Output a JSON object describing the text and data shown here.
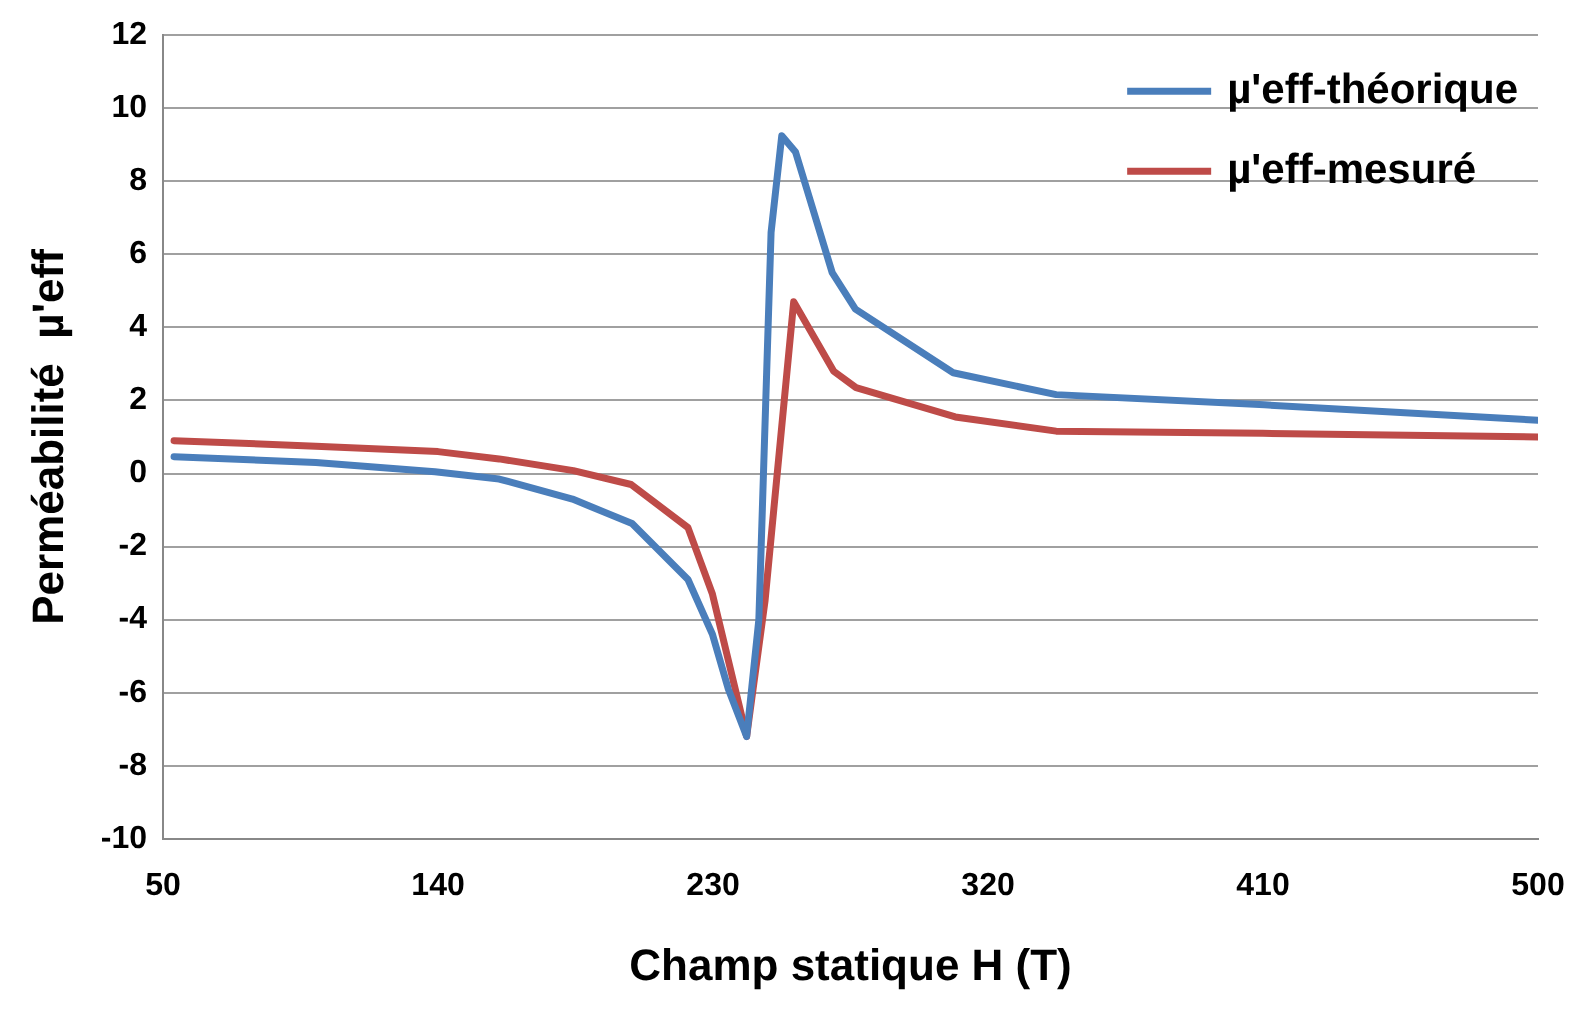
{
  "chart_data": {
    "type": "line",
    "xlabel": "Champ statique H (T)",
    "ylabel": "Perméabilité  µ'eff",
    "xlim": [
      50,
      500
    ],
    "xticks": [
      50,
      140,
      230,
      320,
      410,
      500
    ],
    "ylim": [
      -10,
      12
    ],
    "yticks": [
      -10,
      -8,
      -6,
      -4,
      -2,
      0,
      2,
      4,
      6,
      8,
      10,
      12
    ],
    "grid": "y",
    "legend": "top right",
    "marker": "none",
    "line_style": "solid",
    "series": [
      {
        "name": "µ'eff-théorique",
        "color": "#4a7ebb",
        "x": [
          53.6,
          100,
          139,
          160,
          184,
          203.5,
          221.8,
          229.8,
          235,
          241,
          245,
          249,
          252.5,
          257,
          269,
          276.6,
          308.6,
          342.3,
          410.5,
          500
        ],
        "values": [
          0.46,
          0.3,
          0.05,
          -0.15,
          -0.7,
          -1.37,
          -2.9,
          -4.4,
          -5.9,
          -7.2,
          -4,
          6.6,
          9.25,
          8.8,
          5.5,
          4.5,
          2.76,
          2.16,
          1.88,
          1.46
        ]
      },
      {
        "name": "µ'eff-mesuré",
        "color": "#be4b48",
        "x": [
          53.6,
          100,
          140,
          160,
          184.3,
          203.2,
          221.8,
          229.8,
          241,
          247,
          256.4,
          269.5,
          276.8,
          309.3,
          342.3,
          410,
          500
        ],
        "values": [
          0.9,
          0.75,
          0.6,
          0.4,
          0.08,
          -0.3,
          -1.48,
          -3.3,
          -7.2,
          -3.5,
          4.7,
          2.8,
          2.35,
          1.55,
          1.16,
          1.1,
          1.0
        ]
      }
    ]
  }
}
